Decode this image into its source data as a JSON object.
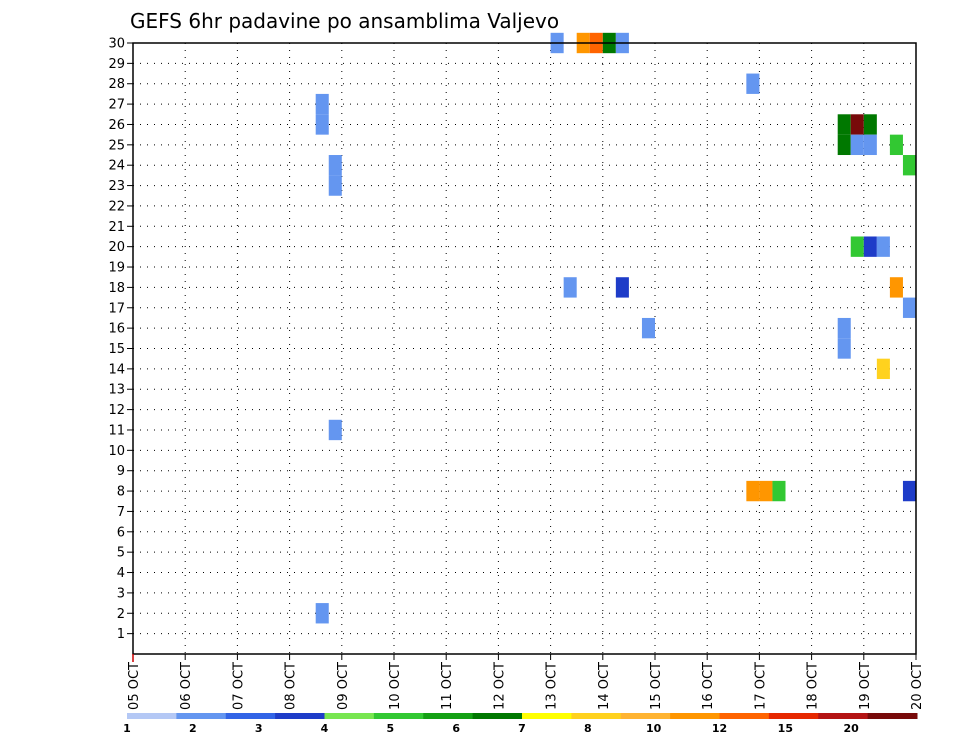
{
  "chart_data": {
    "type": "heatmap",
    "title": "GEFS 6hr padavine po ansamblima Valjevo",
    "xlabel": "",
    "ylabel": "",
    "x_ticks": [
      "05 OCT",
      "06 OCT",
      "07 OCT",
      "08 OCT",
      "09 OCT",
      "10 OCT",
      "11 OCT",
      "12 OCT",
      "13 OCT",
      "14 OCT",
      "15 OCT",
      "16 OCT",
      "17 OCT",
      "18 OCT",
      "19 OCT",
      "20 OCT"
    ],
    "xlim_days": [
      0,
      15
    ],
    "y_ticks": [
      1,
      2,
      3,
      4,
      5,
      6,
      7,
      8,
      9,
      10,
      11,
      12,
      13,
      14,
      15,
      16,
      17,
      18,
      19,
      20,
      21,
      22,
      23,
      24,
      25,
      26,
      27,
      28,
      29,
      30
    ],
    "ylim": [
      0,
      30
    ],
    "grid": true,
    "colorbar": {
      "colors": [
        "#b4c8f5",
        "#6496f0",
        "#3264e6",
        "#1e3cc8",
        "#78e650",
        "#32c832",
        "#14a014",
        "#007800",
        "#ffff00",
        "#ffd21e",
        "#ffb432",
        "#ff9600",
        "#ff6400",
        "#e62800",
        "#b41414",
        "#780a0a"
      ],
      "tick_labels": [
        "1",
        "2",
        "3",
        "4",
        "5",
        "6",
        "7",
        "8",
        "10",
        "12",
        "15",
        "20"
      ],
      "tick_boundaries": [
        0,
        1,
        2,
        3,
        4,
        5,
        6,
        7,
        8,
        9,
        10,
        11
      ]
    },
    "cells": [
      {
        "member": 30,
        "day": 8.0,
        "value": 1.5
      },
      {
        "member": 30,
        "day": 8.5,
        "value": 10
      },
      {
        "member": 30,
        "day": 8.75,
        "value": 13
      },
      {
        "member": 30,
        "day": 9.0,
        "value": 5
      },
      {
        "member": 30,
        "day": 9.25,
        "value": 1.5
      },
      {
        "member": 28,
        "day": 11.75,
        "value": 1.5
      },
      {
        "member": 27,
        "day": 3.5,
        "value": 1.5
      },
      {
        "member": 26,
        "day": 3.5,
        "value": 1.5
      },
      {
        "member": 26,
        "day": 13.5,
        "value": 5
      },
      {
        "member": 26,
        "day": 13.75,
        "value": 25
      },
      {
        "member": 26,
        "day": 14.0,
        "value": 5
      },
      {
        "member": 25,
        "day": 13.5,
        "value": 5
      },
      {
        "member": 25,
        "day": 13.75,
        "value": 1.5
      },
      {
        "member": 25,
        "day": 14.0,
        "value": 1.5
      },
      {
        "member": 25,
        "day": 14.5,
        "value": 3.5
      },
      {
        "member": 24,
        "day": 3.75,
        "value": 1.5
      },
      {
        "member": 24,
        "day": 14.75,
        "value": 3.5
      },
      {
        "member": 23,
        "day": 3.75,
        "value": 1.5
      },
      {
        "member": 20,
        "day": 13.75,
        "value": 3.5
      },
      {
        "member": 20,
        "day": 14.0,
        "value": 2.5
      },
      {
        "member": 20,
        "day": 14.25,
        "value": 1.5
      },
      {
        "member": 18,
        "day": 8.25,
        "value": 1.5
      },
      {
        "member": 18,
        "day": 9.25,
        "value": 2.5
      },
      {
        "member": 18,
        "day": 14.5,
        "value": 10
      },
      {
        "member": 17,
        "day": 14.75,
        "value": 1.5
      },
      {
        "member": 16,
        "day": 9.75,
        "value": 1.5
      },
      {
        "member": 16,
        "day": 13.5,
        "value": 1.5
      },
      {
        "member": 15,
        "day": 13.5,
        "value": 1.5
      },
      {
        "member": 14,
        "day": 14.25,
        "value": 7.5
      },
      {
        "member": 11,
        "day": 3.75,
        "value": 1.5
      },
      {
        "member": 8,
        "day": 11.75,
        "value": 10
      },
      {
        "member": 8,
        "day": 12.0,
        "value": 10
      },
      {
        "member": 8,
        "day": 12.25,
        "value": 3.5
      },
      {
        "member": 8,
        "day": 14.75,
        "value": 2.5
      },
      {
        "member": 2,
        "day": 3.5,
        "value": 1.5
      }
    ]
  }
}
